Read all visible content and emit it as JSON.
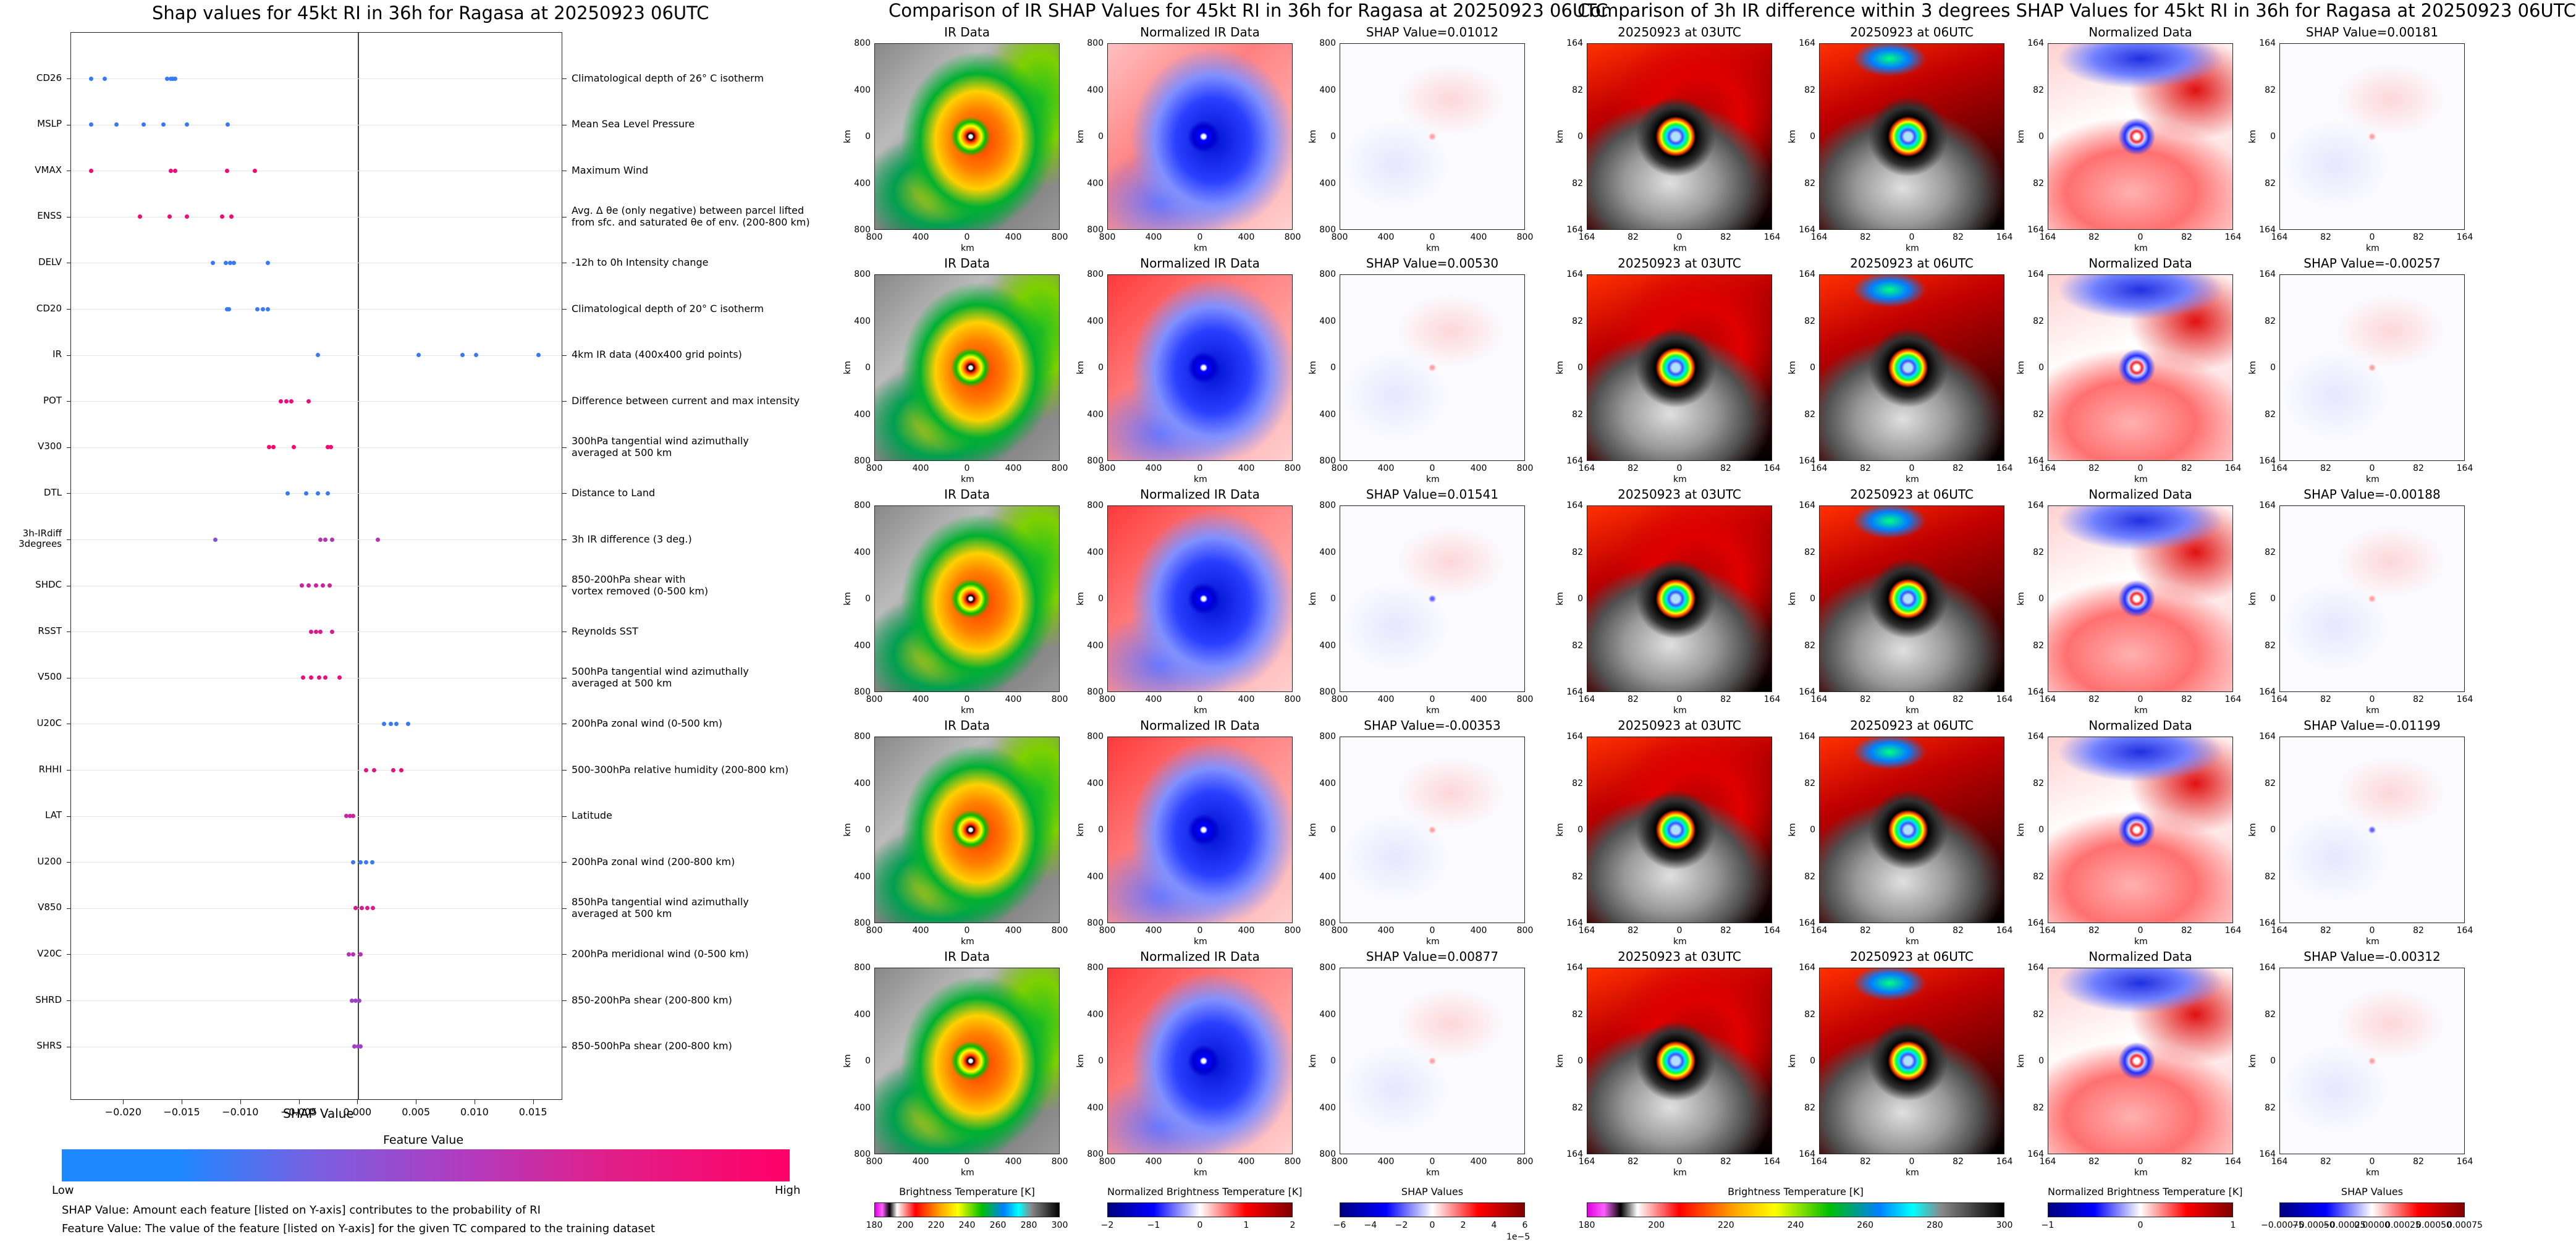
{
  "colors": {
    "low": "#1e88ff",
    "high": "#ff0066",
    "mid": "#a040c8"
  },
  "left": {
    "title": "Shap values for 45kt RI in 36h for Ragasa at 20250923 06UTC",
    "xlabel": "SHAP Value",
    "legend_title": "Feature Value",
    "legend_low": "Low",
    "legend_high": "High",
    "footnote1": "SHAP Value: Amount each feature [listed on Y-axis] contributes to the probability of RI",
    "footnote2": "Feature Value: The value of the feature [listed on Y-axis] for the given TC compared to the training dataset"
  },
  "chart_data": [
    {
      "type": "scatter",
      "title": "Shap values for 45kt RI in 36h for Ragasa at 20250923 06UTC",
      "xlabel": "SHAP Value",
      "xticks": [
        "−0.020",
        "−0.015",
        "−0.010",
        "−0.005",
        "0.000",
        "0.005",
        "0.010",
        "0.015"
      ],
      "xlim": [
        -0.0245,
        0.0175
      ],
      "features": [
        {
          "name": "CD26",
          "desc": [
            "Climatological depth of 26° C isotherm"
          ],
          "points": [
            [
              -0.0228,
              0.05
            ],
            [
              -0.0216,
              0.1
            ],
            [
              -0.0163,
              0.1
            ],
            [
              -0.016,
              0.1
            ],
            [
              -0.0158,
              0.1
            ],
            [
              -0.0156,
              0.1
            ]
          ]
        },
        {
          "name": "MSLP",
          "desc": [
            "Mean Sea Level Pressure"
          ],
          "points": [
            [
              -0.0228,
              0.1
            ],
            [
              -0.0206,
              0.1
            ],
            [
              -0.0183,
              0.1
            ],
            [
              -0.0166,
              0.1
            ],
            [
              -0.0146,
              0.1
            ],
            [
              -0.0111,
              0.1
            ]
          ]
        },
        {
          "name": "VMAX",
          "desc": [
            "Maximum Wind"
          ],
          "points": [
            [
              -0.0228,
              0.95
            ],
            [
              -0.016,
              0.9
            ],
            [
              -0.0156,
              0.9
            ],
            [
              -0.0112,
              0.95
            ],
            [
              -0.0088,
              0.95
            ]
          ]
        },
        {
          "name": "ENSS",
          "desc": [
            "Avg. Δ θe (only negative) between parcel lifted",
            "from sfc. and saturated θe of env. (200-800 km)"
          ],
          "points": [
            [
              -0.0186,
              0.95
            ],
            [
              -0.0161,
              0.95
            ],
            [
              -0.0146,
              0.9
            ],
            [
              -0.0116,
              0.95
            ],
            [
              -0.0108,
              0.95
            ]
          ]
        },
        {
          "name": "DELV",
          "desc": [
            "-12h to 0h Intensity change"
          ],
          "points": [
            [
              -0.0124,
              0.1
            ],
            [
              -0.0113,
              0.1
            ],
            [
              -0.0109,
              0.1
            ],
            [
              -0.0106,
              0.1
            ],
            [
              -0.0077,
              0.1
            ]
          ]
        },
        {
          "name": "CD20",
          "desc": [
            "Climatological depth of 20° C isotherm"
          ],
          "points": [
            [
              -0.0112,
              0.1
            ],
            [
              -0.011,
              0.1
            ],
            [
              -0.0086,
              0.1
            ],
            [
              -0.0081,
              0.1
            ],
            [
              -0.0077,
              0.1
            ]
          ]
        },
        {
          "name": "IR",
          "desc": [
            "4km IR data (400x400 grid points)"
          ],
          "points": [
            [
              -0.0034,
              0.1
            ],
            [
              0.0052,
              0.1
            ],
            [
              0.0089,
              0.1
            ],
            [
              0.0101,
              0.1
            ],
            [
              0.0154,
              0.1
            ]
          ]
        },
        {
          "name": "POT",
          "desc": [
            "Difference between current and max intensity"
          ],
          "points": [
            [
              -0.0066,
              0.9
            ],
            [
              -0.0061,
              0.9
            ],
            [
              -0.0057,
              0.9
            ],
            [
              -0.0042,
              0.9
            ]
          ]
        },
        {
          "name": "V300",
          "desc": [
            "300hPa tangential wind azimuthally",
            "averaged at 500 km"
          ],
          "points": [
            [
              -0.0076,
              0.95
            ],
            [
              -0.0072,
              0.95
            ],
            [
              -0.0055,
              0.95
            ],
            [
              -0.0026,
              0.95
            ],
            [
              -0.0023,
              0.95
            ]
          ]
        },
        {
          "name": "DTL",
          "desc": [
            "Distance to Land"
          ],
          "points": [
            [
              -0.006,
              0.1
            ],
            [
              -0.0044,
              0.1
            ],
            [
              -0.0034,
              0.1
            ],
            [
              -0.0026,
              0.1
            ]
          ]
        },
        {
          "name": "3h-IRdiff 3degrees",
          "desc": [
            "3h IR difference (3 deg.)"
          ],
          "points": [
            [
              -0.0122,
              0.4
            ],
            [
              -0.0032,
              0.6
            ],
            [
              -0.0028,
              0.6
            ],
            [
              -0.0022,
              0.6
            ],
            [
              0.0017,
              0.6
            ]
          ]
        },
        {
          "name": "SHDC",
          "desc": [
            "850-200hPa shear with",
            "vortex removed (0-500 km)"
          ],
          "points": [
            [
              -0.0048,
              0.75
            ],
            [
              -0.0042,
              0.75
            ],
            [
              -0.0036,
              0.75
            ],
            [
              -0.003,
              0.75
            ],
            [
              -0.0024,
              0.75
            ]
          ]
        },
        {
          "name": "RSST",
          "desc": [
            "Reynolds SST"
          ],
          "points": [
            [
              -0.004,
              0.8
            ],
            [
              -0.0036,
              0.8
            ],
            [
              -0.0032,
              0.8
            ],
            [
              -0.0022,
              0.8
            ]
          ]
        },
        {
          "name": "V500",
          "desc": [
            "500hPa tangential wind azimuthally",
            "averaged at 500 km"
          ],
          "points": [
            [
              -0.0047,
              0.9
            ],
            [
              -0.004,
              0.9
            ],
            [
              -0.0033,
              0.9
            ],
            [
              -0.0028,
              0.9
            ],
            [
              -0.0016,
              0.9
            ]
          ]
        },
        {
          "name": "U20C",
          "desc": [
            "200hPa zonal wind (0-500 km)"
          ],
          "points": [
            [
              0.0022,
              0.1
            ],
            [
              0.0028,
              0.1
            ],
            [
              0.0033,
              0.1
            ],
            [
              0.0043,
              0.1
            ]
          ]
        },
        {
          "name": "RHHI",
          "desc": [
            "500-300hPa relative humidity (200-800 km)"
          ],
          "points": [
            [
              0.0007,
              0.85
            ],
            [
              0.0014,
              0.85
            ],
            [
              0.003,
              0.9
            ],
            [
              0.0037,
              0.9
            ]
          ]
        },
        {
          "name": "LAT",
          "desc": [
            "Latitude"
          ],
          "points": [
            [
              -0.001,
              0.7
            ],
            [
              -0.0007,
              0.7
            ],
            [
              -0.0004,
              0.7
            ]
          ]
        },
        {
          "name": "U200",
          "desc": [
            "200hPa zonal wind (200-800 km)"
          ],
          "points": [
            [
              -0.0004,
              0.1
            ],
            [
              0.0002,
              0.1
            ],
            [
              0.0007,
              0.1
            ],
            [
              0.0012,
              0.1
            ]
          ]
        },
        {
          "name": "V850",
          "desc": [
            "850hPa tangential wind azimuthally",
            "averaged at 500 km"
          ],
          "points": [
            [
              -0.0002,
              0.8
            ],
            [
              0.0003,
              0.8
            ],
            [
              0.0008,
              0.8
            ],
            [
              0.0013,
              0.8
            ]
          ]
        },
        {
          "name": "V20C",
          "desc": [
            "200hPa meridional wind (0-500 km)"
          ],
          "points": [
            [
              -0.0008,
              0.6
            ],
            [
              -0.0004,
              0.6
            ],
            [
              0.0002,
              0.6
            ]
          ]
        },
        {
          "name": "SHRD",
          "desc": [
            "850-200hPa shear (200-800 km)"
          ],
          "points": [
            [
              -0.0005,
              0.5
            ],
            [
              -0.0002,
              0.5
            ],
            [
              0.0001,
              0.5
            ]
          ]
        },
        {
          "name": "SHRS",
          "desc": [
            "850-500hPa shear (200-800 km)"
          ],
          "points": [
            [
              -0.0003,
              0.5
            ],
            [
              0.0,
              0.5
            ],
            [
              0.0002,
              0.5
            ]
          ]
        }
      ]
    },
    {
      "type": "heatmap",
      "title": "Comparison of IR SHAP Values for 45kt RI in 36h for Ragasa at 20250923 06UTC",
      "columns": [
        "IR Data",
        "Normalized IR Data"
      ],
      "shap_titles": [
        "SHAP Value=0.01012",
        "SHAP Value=0.00530",
        "SHAP Value=0.01541",
        "SHAP Value=-0.00353",
        "SHAP Value=0.00877"
      ],
      "xlabel": "km",
      "ylabel": "km",
      "xticks": [
        "800",
        "400",
        "0",
        "400",
        "800"
      ],
      "yticks": [
        "800",
        "400",
        "0",
        "400",
        "800"
      ],
      "colorbars": [
        {
          "label": "Brightness Temperature [K]",
          "ticks": [
            "180",
            "200",
            "220",
            "240",
            "260",
            "280",
            "300"
          ]
        },
        {
          "label": "Normalized Brightness Temperature [K]",
          "ticks": [
            "−2",
            "−1",
            "0",
            "1",
            "2"
          ]
        },
        {
          "label": "SHAP Values",
          "ticks": [
            "−6",
            "−4",
            "−2",
            "0",
            "2",
            "4",
            "6"
          ],
          "multiplier": "1e−5"
        }
      ]
    },
    {
      "type": "heatmap",
      "title": "Comparison of 3h IR difference within 3 degrees SHAP Values for 45kt RI in 36h for Ragasa at 20250923 06UTC",
      "columns": [
        "20250923 at 03UTC",
        "20250923 at 06UTC",
        "Normalized Data"
      ],
      "shap_titles": [
        "SHAP Value=0.00181",
        "SHAP Value=-0.00257",
        "SHAP Value=-0.00188",
        "SHAP Value=-0.01199",
        "SHAP Value=-0.00312"
      ],
      "xlabel": "km",
      "ylabel": "km",
      "xticks": [
        "164",
        "82",
        "0",
        "82",
        "164"
      ],
      "yticks": [
        "164",
        "82",
        "0",
        "82",
        "164"
      ],
      "colorbars": [
        {
          "label": "Brightness Temperature [K]",
          "ticks": [
            "180",
            "200",
            "220",
            "240",
            "260",
            "280",
            "300"
          ]
        },
        {
          "label": "Normalized Brightness Temperature [K]",
          "ticks": [
            "−1",
            "0",
            "1"
          ]
        },
        {
          "label": "SHAP Values",
          "ticks": [
            "−0.00075",
            "−0.00050",
            "−0.00025",
            "0.00000",
            "0.00025",
            "0.00050",
            "0.00075"
          ]
        }
      ]
    }
  ]
}
